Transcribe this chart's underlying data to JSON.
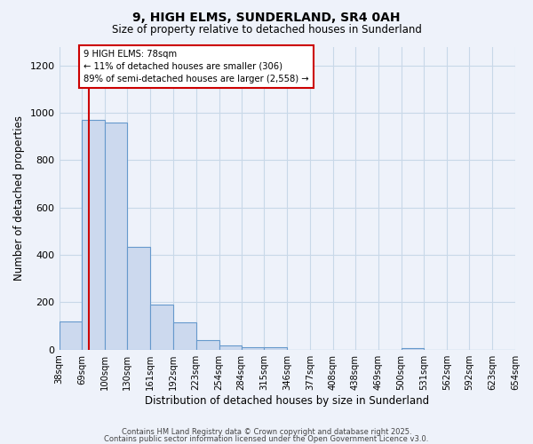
{
  "title": "9, HIGH ELMS, SUNDERLAND, SR4 0AH",
  "subtitle": "Size of property relative to detached houses in Sunderland",
  "xlabel": "Distribution of detached houses by size in Sunderland",
  "ylabel": "Number of detached properties",
  "bar_color": "#ccd9ee",
  "bar_edge_color": "#6699cc",
  "bin_edges": [
    38,
    69,
    100,
    130,
    161,
    192,
    223,
    254,
    284,
    315,
    346,
    377,
    408,
    438,
    469,
    500,
    531,
    562,
    592,
    623,
    654
  ],
  "bar_values": [
    120,
    970,
    960,
    435,
    190,
    115,
    42,
    18,
    12,
    10,
    0,
    0,
    0,
    0,
    0,
    8,
    0,
    0,
    0,
    0
  ],
  "tick_labels": [
    "38sqm",
    "69sqm",
    "100sqm",
    "130sqm",
    "161sqm",
    "192sqm",
    "223sqm",
    "254sqm",
    "284sqm",
    "315sqm",
    "346sqm",
    "377sqm",
    "408sqm",
    "438sqm",
    "469sqm",
    "500sqm",
    "531sqm",
    "562sqm",
    "592sqm",
    "623sqm",
    "654sqm"
  ],
  "vline_x": 78,
  "vline_color": "#cc0000",
  "annotation_text": "9 HIGH ELMS: 78sqm\n← 11% of detached houses are smaller (306)\n89% of semi-detached houses are larger (2,558) →",
  "annotation_box_facecolor": "#ffffff",
  "annotation_box_edgecolor": "#cc0000",
  "ylim": [
    0,
    1280
  ],
  "yticks": [
    0,
    200,
    400,
    600,
    800,
    1000,
    1200
  ],
  "grid_color": "#c8d8e8",
  "bg_color": "#eef2fa",
  "footer1": "Contains HM Land Registry data © Crown copyright and database right 2025.",
  "footer2": "Contains public sector information licensed under the Open Government Licence v3.0."
}
